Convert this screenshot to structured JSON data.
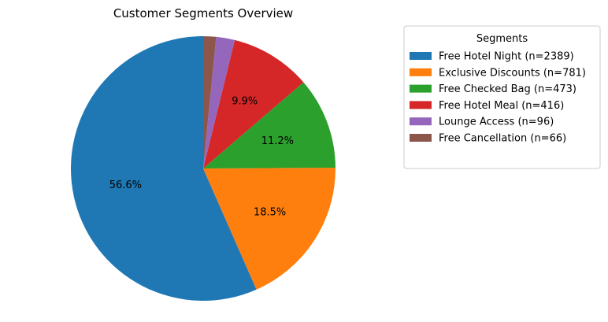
{
  "chart_data": {
    "type": "pie",
    "title": "Customer Segments Overview",
    "legend_title": "Segments",
    "legend_position": "right",
    "start_angle_deg": 90,
    "direction": "counterclockwise",
    "slices": [
      {
        "label": "Free Hotel Night (n=2389)",
        "value": 2389,
        "pct_label": "56.6%",
        "color": "#1f77b4"
      },
      {
        "label": "Exclusive Discounts (n=781)",
        "value": 781,
        "pct_label": "18.5%",
        "color": "#ff7f0e"
      },
      {
        "label": "Free Checked Bag (n=473)",
        "value": 473,
        "pct_label": "11.2%",
        "color": "#2ca02c"
      },
      {
        "label": "Free Hotel Meal (n=416)",
        "value": 416,
        "pct_label": "9.9%",
        "color": "#d62728"
      },
      {
        "label": "Lounge Access (n=96)",
        "value": 96,
        "pct_label": "",
        "color": "#9467bd"
      },
      {
        "label": "Free Cancellation (n=66)",
        "value": 66,
        "pct_label": "",
        "color": "#8c564b"
      }
    ]
  }
}
